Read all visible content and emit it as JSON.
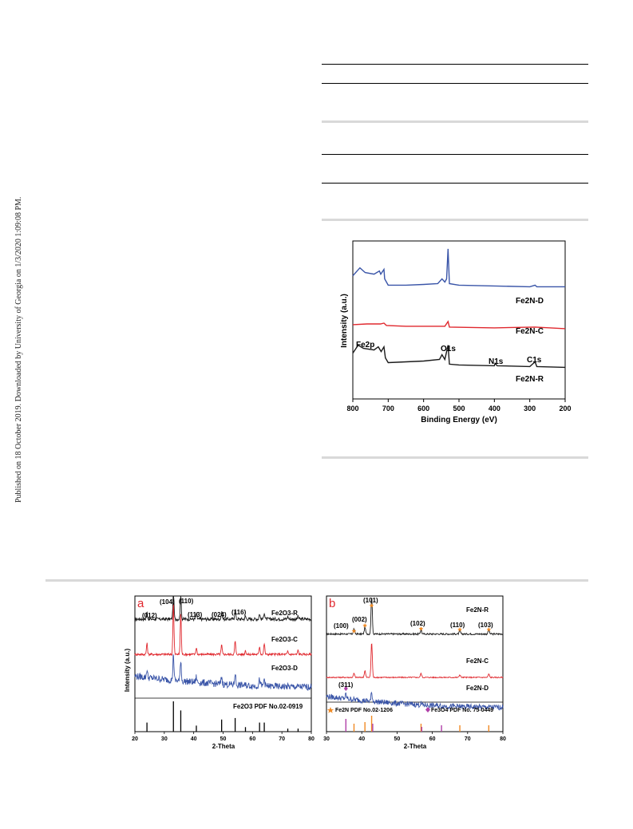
{
  "side_note": "Published on 18 October 2019. Downloaded by University of Georgia on 1/3/2020 1:09:08 PM.",
  "colors": {
    "black": "#1a1a1a",
    "red": "#e0282e",
    "blue": "#3a55a8",
    "orange": "#f08a24",
    "magenta": "#b040a8"
  },
  "chart_data": [
    {
      "type": "line",
      "xlabel": "Binding Energy (eV)",
      "ylabel": "Intensity (a.u.)",
      "xlim": [
        800,
        200
      ],
      "x_ticks": [
        "800",
        "700",
        "600",
        "500",
        "400",
        "300",
        "200"
      ],
      "series": [
        {
          "name": "Fe2N-D",
          "color": "#3a55a8",
          "points": [
            [
              800,
              0.78
            ],
            [
              780,
              0.83
            ],
            [
              765,
              0.8
            ],
            [
              740,
              0.79
            ],
            [
              725,
              0.81
            ],
            [
              721,
              0.79
            ],
            [
              712,
              0.82
            ],
            [
              710,
              0.76
            ],
            [
              700,
              0.72
            ],
            [
              650,
              0.72
            ],
            [
              600,
              0.725
            ],
            [
              560,
              0.73
            ],
            [
              548,
              0.76
            ],
            [
              540,
              0.74
            ],
            [
              535,
              0.76
            ],
            [
              531,
              0.95
            ],
            [
              527,
              0.73
            ],
            [
              500,
              0.72
            ],
            [
              400,
              0.715
            ],
            [
              300,
              0.71
            ],
            [
              285,
              0.72
            ],
            [
              280,
              0.71
            ],
            [
              200,
              0.71
            ]
          ]
        },
        {
          "name": "Fe2N-C",
          "color": "#e0282e",
          "points": [
            [
              800,
              0.47
            ],
            [
              760,
              0.475
            ],
            [
              722,
              0.475
            ],
            [
              712,
              0.48
            ],
            [
              705,
              0.465
            ],
            [
              650,
              0.46
            ],
            [
              560,
              0.46
            ],
            [
              540,
              0.46
            ],
            [
              531,
              0.49
            ],
            [
              527,
              0.455
            ],
            [
              400,
              0.45
            ],
            [
              285,
              0.455
            ],
            [
              200,
              0.445
            ]
          ]
        },
        {
          "name": "Fe2N-R",
          "color": "#1a1a1a",
          "points": [
            [
              800,
              0.29
            ],
            [
              785,
              0.34
            ],
            [
              770,
              0.32
            ],
            [
              740,
              0.31
            ],
            [
              728,
              0.33
            ],
            [
              720,
              0.3
            ],
            [
              712,
              0.33
            ],
            [
              708,
              0.26
            ],
            [
              700,
              0.23
            ],
            [
              650,
              0.235
            ],
            [
              600,
              0.24
            ],
            [
              555,
              0.25
            ],
            [
              548,
              0.28
            ],
            [
              540,
              0.25
            ],
            [
              531,
              0.34
            ],
            [
              527,
              0.22
            ],
            [
              500,
              0.215
            ],
            [
              400,
              0.21
            ],
            [
              398,
              0.225
            ],
            [
              392,
              0.21
            ],
            [
              300,
              0.205
            ],
            [
              285,
              0.235
            ],
            [
              280,
              0.205
            ],
            [
              200,
              0.2
            ]
          ]
        }
      ],
      "annotations": [
        "Fe2p",
        "O1s",
        "N1s",
        "C1s"
      ],
      "legend_labels": [
        "Fe2N-D",
        "Fe2N-C",
        "Fe2N-R"
      ]
    },
    {
      "type": "line",
      "panel": "a",
      "xlabel": "2-Theta",
      "ylabel": "Intensity (a.u.)",
      "xlim": [
        20,
        80
      ],
      "x_ticks": [
        "20",
        "30",
        "40",
        "50",
        "60",
        "70",
        "80"
      ],
      "series": [
        {
          "name": "Fe2O3-R",
          "color": "#1a1a1a",
          "base": 0.83,
          "noise": 0.012,
          "peaks": [
            [
              24.1,
              0.05
            ],
            [
              33.1,
              0.22
            ],
            [
              35.6,
              0.18
            ],
            [
              40.9,
              0.04
            ],
            [
              49.5,
              0.05
            ],
            [
              54.1,
              0.07
            ],
            [
              57.6,
              0.02
            ],
            [
              62.4,
              0.04
            ],
            [
              64.0,
              0.05
            ],
            [
              72.0,
              0.02
            ],
            [
              75.5,
              0.02
            ]
          ]
        },
        {
          "name": "Fe2O3-C",
          "color": "#e0282e",
          "base": 0.57,
          "noise": 0.008,
          "peaks": [
            [
              24.1,
              0.08
            ],
            [
              33.1,
              0.38
            ],
            [
              35.6,
              0.3
            ],
            [
              40.9,
              0.05
            ],
            [
              49.5,
              0.07
            ],
            [
              54.1,
              0.1
            ],
            [
              57.6,
              0.03
            ],
            [
              62.4,
              0.06
            ],
            [
              64.0,
              0.08
            ],
            [
              72.0,
              0.02
            ],
            [
              75.5,
              0.03
            ]
          ]
        },
        {
          "name": "Fe2O3-D",
          "color": "#3a55a8",
          "base": 0.33,
          "noise": 0.025,
          "slope": true,
          "peaks": [
            [
              24.1,
              0.06
            ],
            [
              33.1,
              0.2
            ],
            [
              35.6,
              0.16
            ],
            [
              40.9,
              0.04
            ],
            [
              49.5,
              0.06
            ],
            [
              54.1,
              0.09
            ],
            [
              62.4,
              0.05
            ],
            [
              64.0,
              0.06
            ]
          ]
        }
      ],
      "reference_sticks": [
        [
          24.1,
          0.3
        ],
        [
          33.1,
          1.0
        ],
        [
          35.6,
          0.7
        ],
        [
          40.9,
          0.2
        ],
        [
          49.5,
          0.4
        ],
        [
          54.1,
          0.45
        ],
        [
          57.6,
          0.15
        ],
        [
          62.4,
          0.3
        ],
        [
          64.0,
          0.3
        ],
        [
          72.0,
          0.1
        ],
        [
          75.5,
          0.1
        ]
      ],
      "reference_label": "Fe2O3 PDF No.02-0919",
      "annotations": [
        "(012)",
        "(104)",
        "(110)",
        "(113)",
        "(024)",
        "(116)"
      ]
    },
    {
      "type": "line",
      "panel": "b",
      "xlabel": "2-Theta",
      "ylabel": "Intensity (a.u.)",
      "xlim": [
        30,
        80
      ],
      "x_ticks": [
        "30",
        "40",
        "50",
        "60",
        "70",
        "80"
      ],
      "series": [
        {
          "name": "Fe2N-R",
          "color": "#1a1a1a",
          "base": 0.72,
          "noise": 0.006,
          "peaks": [
            [
              37.8,
              0.04
            ],
            [
              40.9,
              0.05
            ],
            [
              42.8,
              0.28
            ],
            [
              56.8,
              0.03
            ],
            [
              67.8,
              0.025
            ],
            [
              76.0,
              0.03
            ]
          ]
        },
        {
          "name": "Fe2N-C",
          "color": "#e0282e",
          "base": 0.4,
          "noise": 0.004,
          "peaks": [
            [
              37.8,
              0.03
            ],
            [
              40.9,
              0.05
            ],
            [
              42.8,
              0.26
            ],
            [
              56.8,
              0.03
            ],
            [
              67.8,
              0.02
            ],
            [
              76.0,
              0.025
            ]
          ]
        },
        {
          "name": "Fe2N-D",
          "color": "#3a55a8",
          "base": 0.18,
          "noise": 0.02,
          "slope": true,
          "peaks": [
            [
              35.5,
              0.03
            ],
            [
              42.8,
              0.06
            ],
            [
              56.8,
              0.01
            ]
          ]
        }
      ],
      "reference_sticks_fe2n": [
        [
          37.8,
          0.5
        ],
        [
          40.9,
          0.6
        ],
        [
          42.8,
          1.0
        ],
        [
          56.8,
          0.5
        ],
        [
          67.8,
          0.4
        ],
        [
          76.0,
          0.4
        ]
      ],
      "reference_sticks_fe3o4": [
        [
          35.5,
          0.8
        ],
        [
          43.1,
          0.5
        ],
        [
          57.0,
          0.3
        ],
        [
          62.6,
          0.4
        ]
      ],
      "reference_labels": [
        "Fe2N PDF No.02-1206",
        "Fe3O4 PDF No. 75-0449"
      ],
      "annotations": [
        "(101)",
        "(002)",
        "(100)",
        "(102)",
        "(110)",
        "(103)",
        "(311)"
      ]
    }
  ],
  "xps": {
    "ylabel": "Intensity (a.u.)",
    "xlabel": "Binding Energy (eV)",
    "ticks": [
      "800",
      "700",
      "600",
      "500",
      "400",
      "300",
      "200"
    ],
    "fe2p": "Fe2p",
    "o1s": "O1s",
    "n1s": "N1s",
    "c1s": "C1s"
  },
  "xrd_a": {
    "letter": "a",
    "ylabel": "Intensity (a.u.)",
    "xlabel": "2-Theta",
    "ticks": [
      "20",
      "30",
      "40",
      "50",
      "60",
      "70",
      "80"
    ],
    "h012": "(012)",
    "h104": "(104)",
    "h110": "(110)",
    "h113": "(113)",
    "h024": "(024)",
    "h116": "(116)",
    "ref": "Fe2O3 PDF No.02-0919"
  },
  "xrd_b": {
    "letter": "b",
    "ylabel": "Intensity (a.u.)",
    "xlabel": "2-Theta",
    "ticks": [
      "30",
      "40",
      "50",
      "60",
      "70",
      "80"
    ],
    "h101": "(101)",
    "h002": "(002)",
    "h100": "(100)",
    "h102": "(102)",
    "h110": "(110)",
    "h103": "(103)",
    "h311": "(311)"
  }
}
